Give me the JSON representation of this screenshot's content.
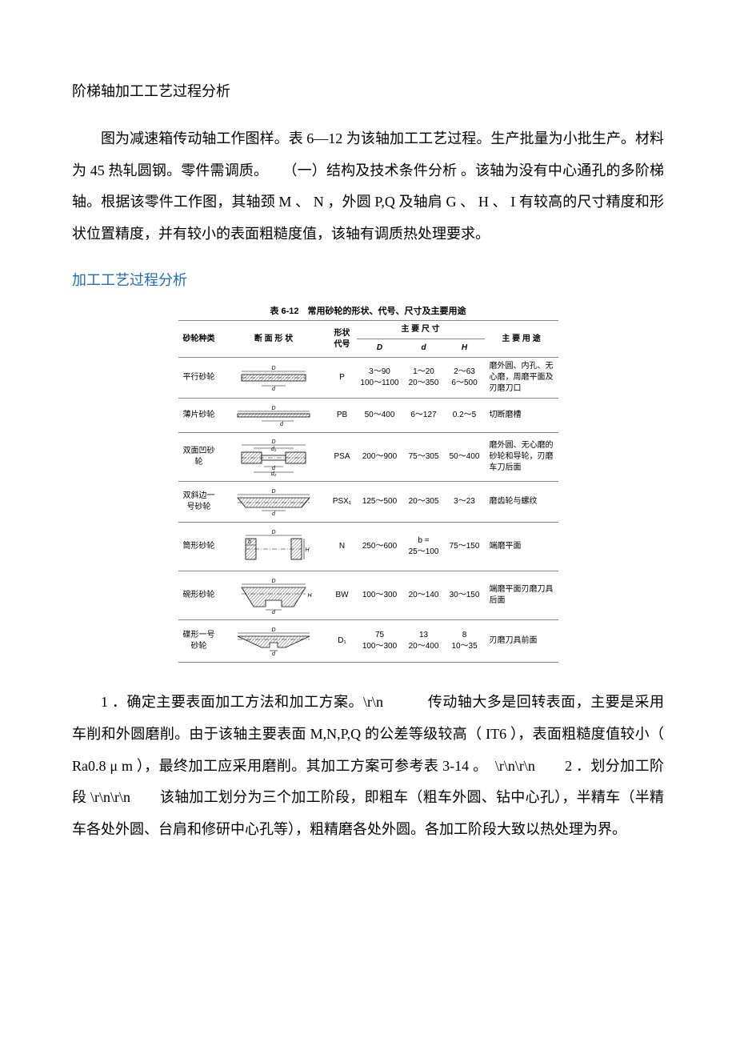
{
  "title": "阶梯轴加工工艺过程分析",
  "para1": "图为减速箱传动轴工作图样。表 6—12 为该轴加工工艺过程。生产批量为小批生产。材料为 45 热轧圆钢。零件需调质。　　（一）结构及技术条件分析 。该轴为没有中心通孔的多阶梯轴。根据该零件工作图，其轴颈 M 、 N ，外圆 P,Q 及轴肩 G 、 H 、 I 有较高的尺寸精度和形状位置精度，并有较小的表面粗糙度值，该轴有调质热处理要求。",
  "sectionLink": "加工工艺过程分析",
  "tableTitle": "表 6-12　常用砂轮的形状、代号、尺寸及主要用途",
  "headers": {
    "kind": "砂轮种类",
    "shape": "断 面 形 状",
    "code": "形状\n代号",
    "dimGroup": "主 要 尺 寸",
    "D": "D",
    "d": "d",
    "H": "H",
    "use": "主 要 用 途"
  },
  "rows": [
    {
      "kind": "平行砂轮",
      "code": "P",
      "D": "3～90\n100～1100",
      "d": "1～20\n20～350",
      "H": "2～63\n6～500",
      "use": "磨外圆、内孔、无心磨，周磨平面及刃磨刀口"
    },
    {
      "kind": "薄片砂轮",
      "code": "PB",
      "D": "50～400",
      "d": "6～127",
      "H": "0.2～5",
      "use": "切断磨槽"
    },
    {
      "kind": "双面凹砂轮",
      "code": "PSA",
      "D": "200～900",
      "d": "75～305",
      "H": "50～400",
      "use": "磨外圆、无心磨的砂轮和导轮，刃磨车刀后面"
    },
    {
      "kind": "双斜边一号砂轮",
      "code": "PSX₁",
      "D": "125～500",
      "d": "20～305",
      "H": "3～23",
      "use": "磨齿轮与螺纹"
    },
    {
      "kind": "筒形砂轮",
      "code": "N",
      "D": "250～600",
      "d": "b =\n25～100",
      "H": "75～150",
      "use": "端磨平面"
    },
    {
      "kind": "碗形砂轮",
      "code": "BW",
      "D": "100～300",
      "d": "20～140",
      "H": "30～150",
      "use": "端磨平面刃磨刀具后面"
    },
    {
      "kind": "碟形一号砂轮",
      "code": "D₁",
      "D": "75\n100～300",
      "d": "13\n20～400",
      "H": "8\n10～35",
      "use": "刃磨刀具前面"
    }
  ],
  "para2": "1 ．确定主要表面加工方法和加工方案。\\r\\n　　　传动轴大多是回转表面，主要是采用车削和外圆磨削。由于该轴主要表面 M,N,P,Q 的公差等级较高（ IT6 ），表面粗糙度值较小（ Ra0.8 μ m ），最终加工应采用磨削。其加工方案可参考表 3-14 。　\\r\\n\\r\\n　　2 ．划分加工阶段 \\r\\n\\r\\n　　该轴加工划分为三个加工阶段，即粗车（粗车外圆、钻中心孔），半精车（半精车各处外圆、台肩和修研中心孔等），粗精磨各处外圆。各加工阶段大致以热处理为界。",
  "colors": {
    "text": "#000000",
    "link": "#1f6bb8",
    "border": "#888888",
    "hatch": "#999999"
  },
  "svg": {
    "stroke": "#000000",
    "hatchStroke": "#777777"
  }
}
